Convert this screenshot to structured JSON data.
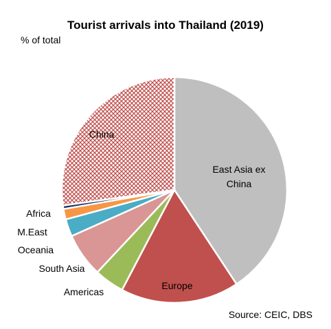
{
  "chart_data": {
    "type": "pie",
    "title": "Tourist arrivals into Thailand (2019)",
    "subtitle": "% of total",
    "source": "Source: CEIC, DBS",
    "categories": [
      "East Asia ex China",
      "Europe",
      "Americas",
      "South Asia",
      "Oceania",
      "M.East",
      "Africa",
      "China"
    ],
    "values": [
      40.7,
      17,
      4.3,
      6.3,
      2.5,
      1.5,
      0.5,
      27.2
    ],
    "colors": [
      "#bfbfbf",
      "#c0504d",
      "#9bbb59",
      "#d99694",
      "#4bacc6",
      "#f79646",
      "#1f3864",
      "#c0504d"
    ],
    "hatch": [
      false,
      false,
      false,
      false,
      false,
      false,
      false,
      true
    ]
  }
}
